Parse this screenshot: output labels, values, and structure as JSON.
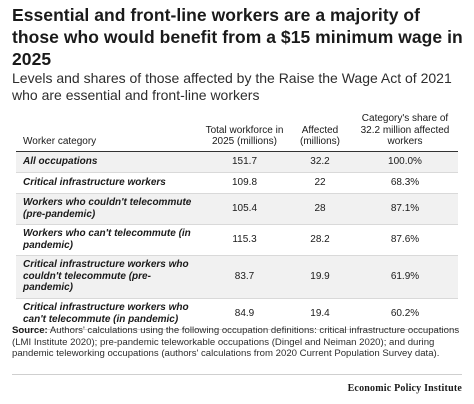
{
  "header": {
    "title": "Essential and front-line workers are a majority of those who would benefit from a $15 minimum wage in 2025",
    "subtitle": "Levels and shares of those affected by the Raise the Wage Act of 2021 who are essential and front-line workers"
  },
  "chart_data": {
    "type": "table",
    "columns": [
      "Worker category",
      "Total workforce in 2025 (millions)",
      "Affected (millions)",
      "Category's share of 32.2 million affected workers"
    ],
    "rows": [
      [
        "All occupations",
        "151.7",
        "32.2",
        "100.0%"
      ],
      [
        "Critical infrastructure workers",
        "109.8",
        "22",
        "68.3%"
      ],
      [
        "Workers who couldn't telecommute (pre-pandemic)",
        "105.4",
        "28",
        "87.1%"
      ],
      [
        "Workers who can't telecommute (in pandemic)",
        "115.3",
        "28.2",
        "87.6%"
      ],
      [
        "Critical infrastructure workers who couldn't telecommute (pre-pandemic)",
        "83.7",
        "19.9",
        "61.9%"
      ],
      [
        "Critical infrastructure workers who can't telecommute (in pandemic)",
        "84.9",
        "19.4",
        "60.2%"
      ]
    ]
  },
  "footer": {
    "source_label": "Source:",
    "source_text": "Authors' calculations using the following occupation definitions: critical infrastructure occupations (LMI Institute 2020); pre-pandemic teleworkable occupations (Dingel and Neiman 2020); and during pandemic teleworking occupations (authors' calculations from 2020 Current Population Survey data).",
    "brand": "Economic Policy Institute"
  },
  "colors": {
    "title": "#1a1a1a",
    "row_band": "#f1f1f1",
    "rule": "#333333",
    "row_divider": "#d9d9d9"
  }
}
